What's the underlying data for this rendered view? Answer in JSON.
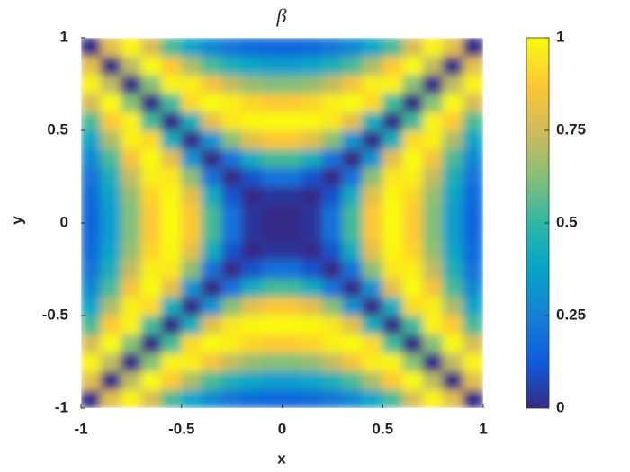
{
  "chart_data": {
    "type": "heatmap",
    "title": "β",
    "xlabel": "x",
    "ylabel": "y",
    "x": [
      -0.95,
      -0.85,
      -0.75,
      -0.65,
      -0.55,
      -0.45,
      -0.35,
      -0.25,
      -0.15,
      -0.05,
      0.05,
      0.15,
      0.25,
      0.35,
      0.45,
      0.55,
      0.65,
      0.75,
      0.85,
      0.95
    ],
    "y": [
      -0.95,
      -0.85,
      -0.75,
      -0.65,
      -0.55,
      -0.45,
      -0.35,
      -0.25,
      -0.15,
      -0.05,
      0.05,
      0.15,
      0.25,
      0.35,
      0.45,
      0.55,
      0.65,
      0.75,
      0.85,
      0.95
    ],
    "z": [
      [
        0,
        0.8,
        0.98,
        0.77,
        0.54,
        0.38,
        0.28,
        0.21,
        0.18,
        0.16,
        0.16,
        0.18,
        0.21,
        0.28,
        0.38,
        0.54,
        0.77,
        0.98,
        0.8,
        0
      ],
      [
        0.8,
        0,
        0.72,
        1,
        0.88,
        0.69,
        0.54,
        0.44,
        0.38,
        0.35,
        0.35,
        0.38,
        0.44,
        0.54,
        0.69,
        0.88,
        1,
        0.72,
        0,
        0.8
      ],
      [
        0.98,
        0.72,
        0,
        0.63,
        0.98,
        0.97,
        0.85,
        0.73,
        0.65,
        0.62,
        0.62,
        0.65,
        0.73,
        0.85,
        0.97,
        0.98,
        0.63,
        0,
        0.72,
        0.98
      ],
      [
        0.77,
        1,
        0.63,
        0,
        0.53,
        0.92,
        1,
        0.97,
        0.91,
        0.88,
        0.88,
        0.91,
        0.97,
        1,
        0.92,
        0.53,
        0,
        0.63,
        1,
        0.77
      ],
      [
        0.54,
        0.88,
        0.98,
        0.53,
        0,
        0.42,
        0.8,
        0.95,
        0.99,
        1,
        1,
        0.99,
        0.95,
        0.8,
        0.42,
        0,
        0.53,
        0.98,
        0.88,
        0.54
      ],
      [
        0.38,
        0.69,
        0.97,
        0.92,
        0.42,
        0,
        0.31,
        0.63,
        0.8,
        0.87,
        0.87,
        0.8,
        0.63,
        0.31,
        0,
        0.42,
        0.92,
        0.97,
        0.69,
        0.38
      ],
      [
        0.28,
        0.54,
        0.85,
        1,
        0.8,
        0.31,
        0,
        0.2,
        0.42,
        0.53,
        0.53,
        0.42,
        0.2,
        0,
        0.31,
        0.8,
        1,
        0.85,
        0.54,
        0.28
      ],
      [
        0.21,
        0.44,
        0.73,
        0.97,
        0.95,
        0.63,
        0.2,
        0,
        0.1,
        0.2,
        0.2,
        0.1,
        0,
        0.2,
        0.63,
        0.95,
        0.97,
        0.73,
        0.44,
        0.21
      ],
      [
        0.18,
        0.38,
        0.65,
        0.91,
        0.99,
        0.8,
        0.42,
        0.1,
        0,
        0.03,
        0.03,
        0,
        0.1,
        0.42,
        0.8,
        0.99,
        0.91,
        0.65,
        0.38,
        0.18
      ],
      [
        0.16,
        0.35,
        0.62,
        0.88,
        1,
        0.87,
        0.53,
        0.2,
        0.03,
        0,
        0,
        0.03,
        0.2,
        0.53,
        0.87,
        1,
        0.88,
        0.62,
        0.35,
        0.16
      ],
      [
        0.16,
        0.35,
        0.62,
        0.88,
        1,
        0.87,
        0.53,
        0.2,
        0.03,
        0,
        0,
        0.03,
        0.2,
        0.53,
        0.87,
        1,
        0.88,
        0.62,
        0.35,
        0.16
      ],
      [
        0.18,
        0.38,
        0.65,
        0.91,
        0.99,
        0.8,
        0.42,
        0.1,
        0,
        0.03,
        0.03,
        0,
        0.1,
        0.42,
        0.8,
        0.99,
        0.91,
        0.65,
        0.38,
        0.18
      ],
      [
        0.21,
        0.44,
        0.73,
        0.97,
        0.95,
        0.63,
        0.2,
        0,
        0.1,
        0.2,
        0.2,
        0.1,
        0,
        0.2,
        0.63,
        0.95,
        0.97,
        0.73,
        0.44,
        0.21
      ],
      [
        0.28,
        0.54,
        0.85,
        1,
        0.8,
        0.31,
        0,
        0.2,
        0.42,
        0.53,
        0.53,
        0.42,
        0.2,
        0,
        0.31,
        0.8,
        1,
        0.85,
        0.54,
        0.28
      ],
      [
        0.38,
        0.69,
        0.97,
        0.92,
        0.42,
        0,
        0.31,
        0.63,
        0.8,
        0.87,
        0.87,
        0.8,
        0.63,
        0.31,
        0,
        0.42,
        0.92,
        0.97,
        0.69,
        0.38
      ],
      [
        0.54,
        0.88,
        0.98,
        0.53,
        0,
        0.42,
        0.8,
        0.95,
        0.99,
        1,
        1,
        0.99,
        0.95,
        0.8,
        0.42,
        0,
        0.53,
        0.98,
        0.88,
        0.54
      ],
      [
        0.77,
        1,
        0.63,
        0,
        0.53,
        0.92,
        1,
        0.97,
        0.91,
        0.88,
        0.88,
        0.91,
        0.97,
        1,
        0.92,
        0.53,
        0,
        0.63,
        1,
        0.77
      ],
      [
        0.98,
        0.72,
        0,
        0.63,
        0.98,
        0.97,
        0.85,
        0.73,
        0.65,
        0.62,
        0.62,
        0.65,
        0.73,
        0.85,
        0.97,
        0.98,
        0.63,
        0,
        0.72,
        0.98
      ],
      [
        0.8,
        0,
        0.72,
        1,
        0.88,
        0.69,
        0.54,
        0.44,
        0.38,
        0.35,
        0.35,
        0.38,
        0.44,
        0.54,
        0.69,
        0.88,
        1,
        0.72,
        0,
        0.8
      ],
      [
        0,
        0.8,
        0.98,
        0.77,
        0.54,
        0.38,
        0.28,
        0.21,
        0.18,
        0.16,
        0.16,
        0.18,
        0.21,
        0.28,
        0.38,
        0.54,
        0.77,
        0.98,
        0.8,
        0
      ]
    ],
    "xlim": [
      -1,
      1
    ],
    "ylim": [
      -1,
      1
    ],
    "xticks": [
      -1,
      -0.5,
      0,
      0.5,
      1
    ],
    "yticks": [
      -1,
      -0.5,
      0,
      0.5,
      1
    ],
    "colormap": [
      "#352a87",
      "#0f5cdd",
      "#1481d6",
      "#06a4ca",
      "#2eb7a4",
      "#87bf77",
      "#d1bb59",
      "#fec832",
      "#f9fb0e"
    ],
    "colorbar": {
      "ylim": [
        0,
        1
      ],
      "yticks": [
        0,
        0.25,
        0.5,
        0.75,
        1
      ]
    }
  }
}
